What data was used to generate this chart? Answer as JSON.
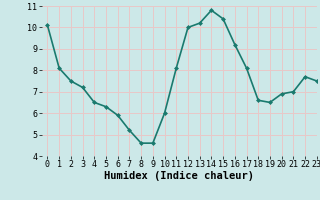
{
  "x": [
    0,
    1,
    2,
    3,
    4,
    5,
    6,
    7,
    8,
    9,
    10,
    11,
    12,
    13,
    14,
    15,
    16,
    17,
    18,
    19,
    20,
    21,
    22,
    23
  ],
  "y": [
    10.1,
    8.1,
    7.5,
    7.2,
    6.5,
    6.3,
    5.9,
    5.2,
    4.6,
    4.6,
    6.0,
    8.1,
    10.0,
    10.2,
    10.8,
    10.4,
    9.2,
    8.1,
    6.6,
    6.5,
    6.9,
    7.0,
    7.7,
    7.5
  ],
  "line_color": "#1a7a6e",
  "marker": "D",
  "marker_size": 2.0,
  "bg_color": "#cce8e8",
  "xlabel": "Humidex (Indice chaleur)",
  "ylim": [
    4,
    11
  ],
  "xlim": [
    -0.5,
    23
  ],
  "yticks": [
    4,
    5,
    6,
    7,
    8,
    9,
    10,
    11
  ],
  "xticks": [
    0,
    1,
    2,
    3,
    4,
    5,
    6,
    7,
    8,
    9,
    10,
    11,
    12,
    13,
    14,
    15,
    16,
    17,
    18,
    19,
    20,
    21,
    22,
    23
  ],
  "grid_color": "#e8c8c8",
  "tick_fontsize": 6,
  "xlabel_fontsize": 7.5,
  "line_width": 1.2
}
